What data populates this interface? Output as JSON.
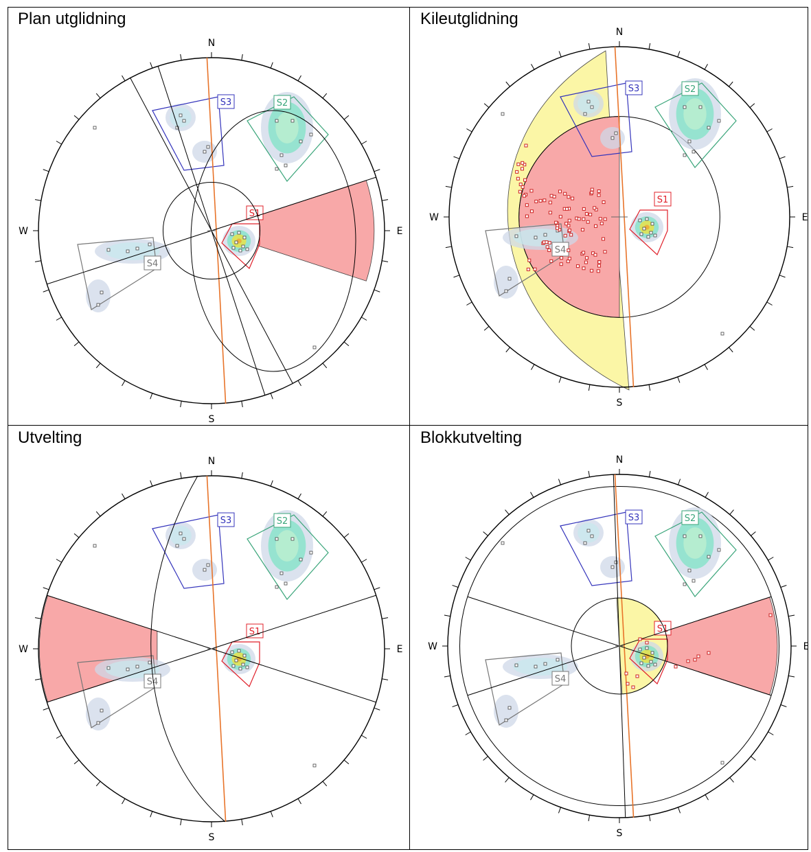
{
  "colors": {
    "outline": "#000000",
    "strike_line": "#e8742a",
    "danger_zone": "#f8a8a8",
    "secondary_zone": "#fbf6a6",
    "pole_marker": "#cc2222",
    "set_s1": "#e0202a",
    "set_s2": "#3aa57a",
    "set_s3": "#3333bb",
    "set_s4": "#777777",
    "contour_low": "#cfd8e8",
    "contour_mid": "#7fe3c6",
    "contour_high": "#f2e23a",
    "contour_peak": "#e02020"
  },
  "compass": {
    "n": "N",
    "s": "S",
    "e": "E",
    "w": "W"
  },
  "set_labels": [
    "S1",
    "S2",
    "S3",
    "S4"
  ],
  "panels": [
    {
      "title": "Plan utglidning",
      "mode": "planar"
    },
    {
      "title": "Kileutglidning",
      "mode": "wedge"
    },
    {
      "title": "Utvelting",
      "mode": "toppling"
    },
    {
      "title": "Blokkutvelting",
      "mode": "block"
    }
  ]
}
